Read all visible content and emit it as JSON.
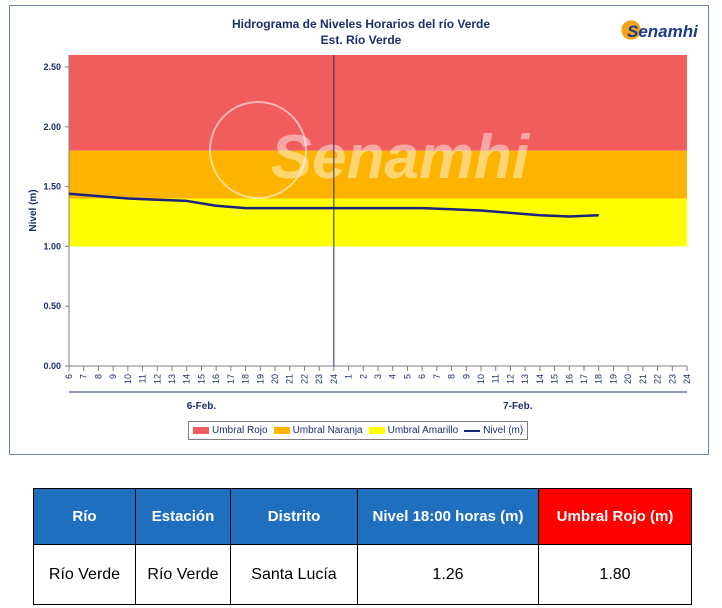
{
  "chart_data": {
    "type": "line",
    "title": "Hidrograma de Niveles Horarios del río Verde",
    "subtitle": "Est. Río Verde",
    "ylabel": "Nivel (m)",
    "ylim": [
      0,
      2.6
    ],
    "yticks": [
      "0.00",
      "0.50",
      "1.00",
      "1.50",
      "2.00",
      "2.50"
    ],
    "xtick_labels": [
      "6",
      "7",
      "8",
      "9",
      "10",
      "11",
      "12",
      "13",
      "14",
      "15",
      "16",
      "17",
      "18",
      "19",
      "20",
      "21",
      "22",
      "23",
      "24",
      "1",
      "2",
      "3",
      "4",
      "5",
      "6",
      "7",
      "8",
      "9",
      "10",
      "11",
      "12",
      "13",
      "14",
      "15",
      "16",
      "17",
      "18",
      "19",
      "20",
      "21",
      "22",
      "23",
      "24"
    ],
    "day_labels": [
      "6-Feb.",
      "7-Feb."
    ],
    "thresholds": [
      {
        "name": "Umbral Rojo",
        "from": 1.8,
        "to": 2.6,
        "color": "#f15d5d"
      },
      {
        "name": "Umbral Naranja",
        "from": 1.4,
        "to": 1.8,
        "color": "#fcb400"
      },
      {
        "name": "Umbral Amarillo",
        "from": 1.0,
        "to": 1.4,
        "color": "#ffff00"
      }
    ],
    "series": [
      {
        "name": "Nivel (m)",
        "color": "#1a237e",
        "x": [
          0,
          2,
          4,
          6,
          8,
          10,
          12,
          14,
          16,
          18,
          20,
          22,
          24,
          26,
          28,
          30,
          32,
          34,
          36
        ],
        "values": [
          1.44,
          1.42,
          1.4,
          1.39,
          1.38,
          1.34,
          1.32,
          1.32,
          1.32,
          1.32,
          1.32,
          1.32,
          1.32,
          1.31,
          1.3,
          1.28,
          1.26,
          1.25,
          1.26
        ]
      }
    ],
    "watermark": "Senamhi"
  },
  "logo": {
    "name": "Senamhi"
  },
  "table": {
    "headers": [
      "Río",
      "Estación",
      "Distrito",
      "Nivel 18:00 horas (m)",
      "Umbral Rojo (m)"
    ],
    "row": [
      "Río Verde",
      "Río Verde",
      "Santa Lucía",
      "1.26",
      "1.80"
    ]
  }
}
